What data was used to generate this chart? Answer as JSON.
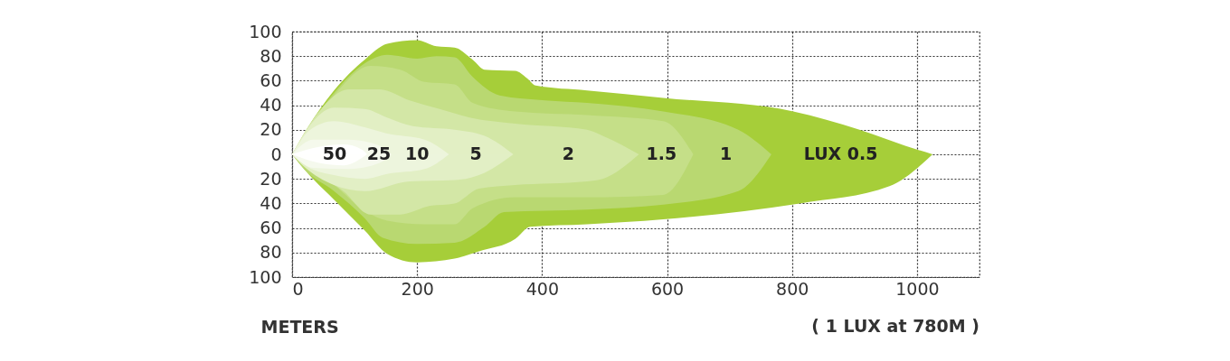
{
  "chart_data": {
    "type": "area",
    "xlabel": "METERS",
    "xlim": [
      0,
      1100
    ],
    "xticks": [
      0,
      200,
      400,
      600,
      800,
      1000
    ],
    "ylim": [
      -100,
      100
    ],
    "yticks": [
      {
        "value": -100,
        "label": "100"
      },
      {
        "value": -80,
        "label": "80"
      },
      {
        "value": -60,
        "label": "60"
      },
      {
        "value": -40,
        "label": "40"
      },
      {
        "value": -20,
        "label": "20"
      },
      0,
      20,
      40,
      60,
      80,
      100
    ],
    "grid": true,
    "series": [
      {
        "color": "#a6ce39",
        "x": [
          0,
          24,
          67,
          116,
          152,
          200,
          231,
          260,
          289,
          308,
          357,
          376,
          390,
          472,
          594,
          802,
          908,
          981,
          1025
        ],
        "values": [
          0,
          21,
          52,
          77,
          90,
          93,
          88,
          87,
          77,
          69,
          68,
          62,
          56,
          52,
          46,
          35,
          20,
          7,
          0
        ]
      },
      {
        "color": "#a6ce39",
        "x": [
          0,
          19,
          67,
          116,
          152,
          200,
          260,
          299,
          357,
          381,
          472,
          594,
          812,
          956,
          1025
        ],
        "values": [
          0,
          -12,
          -37,
          -62,
          -81,
          -88,
          -85,
          -79,
          -69,
          -59,
          -57,
          -53,
          -40,
          -26,
          0
        ]
      },
      {
        "color": "#b9d871",
        "x": [
          0,
          67,
          116,
          152,
          200,
          231,
          260,
          289,
          332,
          405,
          472,
          594,
          714,
          767
        ],
        "values": [
          0,
          50,
          74,
          81,
          78,
          80,
          79,
          63,
          48,
          44,
          42,
          35,
          20,
          0
        ]
      },
      {
        "color": "#b9d871",
        "x": [
          0,
          19,
          67,
          116,
          145,
          200,
          260,
          308,
          339,
          472,
          594,
          714,
          767
        ],
        "values": [
          0,
          -12,
          -30,
          -52,
          -68,
          -73,
          -72,
          -59,
          -47,
          -45,
          -41,
          -30,
          0
        ]
      },
      {
        "color": "#c5df88",
        "x": [
          0,
          67,
          125,
          173,
          212,
          260,
          289,
          357,
          472,
          594,
          642
        ],
        "values": [
          0,
          48,
          72,
          69,
          59,
          57,
          42,
          35,
          32,
          27,
          0
        ]
      },
      {
        "color": "#c5df88",
        "x": [
          0,
          19,
          67,
          116,
          152,
          212,
          260,
          289,
          357,
          472,
          594,
          642
        ],
        "values": [
          0,
          -10,
          -25,
          -46,
          -54,
          -57,
          -57,
          -44,
          -35,
          -35,
          -33,
          0
        ]
      },
      {
        "color": "#d3e7a6",
        "x": [
          0,
          43,
          91,
          140,
          188,
          236,
          284,
          357,
          472,
          497,
          555
        ],
        "values": [
          0,
          35,
          53,
          53,
          44,
          37,
          30,
          25,
          20,
          15,
          0
        ]
      },
      {
        "color": "#d3e7a6",
        "x": [
          0,
          19,
          82,
          125,
          173,
          221,
          260,
          299,
          357,
          472,
          497,
          555
        ],
        "values": [
          0,
          -9,
          -30,
          -49,
          -49,
          -42,
          -40,
          -28,
          -25,
          -22,
          -20,
          0
        ]
      },
      {
        "color": "#e2efc4",
        "x": [
          0,
          34,
          67,
          116,
          152,
          193,
          260,
          308,
          354
        ],
        "values": [
          0,
          27,
          38,
          37,
          30,
          23,
          20,
          15,
          0
        ]
      },
      {
        "color": "#e2efc5",
        "x": [
          0,
          19,
          67,
          116,
          188,
          260,
          308,
          354
        ],
        "values": [
          0,
          -10,
          -25,
          -30,
          -22,
          -21,
          -15,
          0
        ]
      },
      {
        "color": "#edf5dc",
        "x": [
          0,
          29,
          67,
          116,
          152,
          212,
          251
        ],
        "values": [
          0,
          20,
          27,
          22,
          17,
          12,
          0
        ]
      },
      {
        "color": "#edf5dd",
        "x": [
          0,
          24,
          67,
          116,
          152,
          212,
          251
        ],
        "values": [
          0,
          -10,
          -17,
          -20,
          -16,
          -12,
          0
        ]
      },
      {
        "color": "#f5f9ec",
        "x": [
          0,
          34,
          91,
          140,
          159
        ],
        "values": [
          0,
          12,
          12,
          7,
          0
        ]
      },
      {
        "color": "#f5f9ed",
        "x": [
          0,
          34,
          91,
          140,
          159
        ],
        "values": [
          0,
          -11,
          -12,
          -7,
          0
        ]
      },
      {
        "color": "#ffffff",
        "x": [
          0,
          43,
          82,
          111,
          120
        ],
        "values": [
          0,
          6,
          8,
          4,
          0
        ]
      },
      {
        "color": "#fffffe",
        "x": [
          0,
          43,
          82,
          120
        ],
        "values": [
          0,
          -7,
          -9,
          0
        ]
      }
    ],
    "annotations": [
      {
        "text": "50",
        "x": 68,
        "y": 0
      },
      {
        "text": "25",
        "x": 139,
        "y": 0
      },
      {
        "text": "10",
        "x": 200,
        "y": 0
      },
      {
        "text": "5",
        "x": 294,
        "y": 0
      },
      {
        "text": "2",
        "x": 442,
        "y": 0
      },
      {
        "text": "1.5",
        "x": 591,
        "y": 0
      },
      {
        "text": "1",
        "x": 694,
        "y": 0
      },
      {
        "text": "LUX 0.5",
        "x": 878,
        "y": 0
      },
      "( 1 LUX at 780M )"
    ]
  }
}
